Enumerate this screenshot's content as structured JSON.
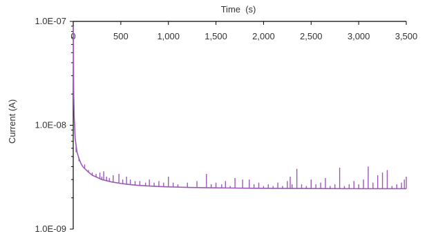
{
  "chart_data": {
    "type": "line",
    "title": "",
    "xlabel": "Time  (s)",
    "ylabel": "Current (A)",
    "x_axis_position": "top",
    "xlim": [
      0,
      3500
    ],
    "ylim": [
      1e-09,
      1e-07
    ],
    "y_scale": "log",
    "grid": false,
    "legend": "none",
    "x_tick_values": [
      0,
      500,
      1000,
      1500,
      2000,
      2500,
      3000,
      3500
    ],
    "x_tick_labels": [
      "0",
      "500",
      "1,000",
      "1,500",
      "2,000",
      "2,500",
      "3,000",
      "3,500"
    ],
    "y_tick_values": [
      1e-09,
      1e-08,
      1e-07
    ],
    "y_tick_labels": [
      "1.0E-09",
      "1.0E-08",
      "1.0E-07"
    ],
    "colors": {
      "series": "#9b59b6",
      "axis": "#000000"
    },
    "series": [
      {
        "baseline": {
          "x": [
            0,
            5,
            10,
            20,
            40,
            60,
            80,
            100,
            150,
            200,
            250,
            300,
            400,
            500,
            600,
            700,
            800,
            900,
            1000,
            1200,
            1400,
            1600,
            1800,
            2000,
            2500,
            3000,
            3500
          ],
          "y": [
            9e-08,
            2e-08,
            1.2e-08,
            7.5e-09,
            5.5e-09,
            4.8e-09,
            4.3e-09,
            4e-09,
            3.6e-09,
            3.3e-09,
            3.15e-09,
            3e-09,
            2.85e-09,
            2.75e-09,
            2.68e-09,
            2.63e-09,
            2.6e-09,
            2.57e-09,
            2.55e-09,
            2.52e-09,
            2.5e-09,
            2.49e-09,
            2.48e-09,
            2.47e-09,
            2.46e-09,
            2.45e-09,
            2.45e-09
          ]
        },
        "spikes": {
          "x": [
            30,
            60,
            120,
            160,
            200,
            240,
            280,
            300,
            320,
            350,
            380,
            420,
            480,
            520,
            560,
            600,
            650,
            700,
            760,
            800,
            850,
            900,
            950,
            1000,
            1050,
            1100,
            1200,
            1300,
            1400,
            1450,
            1500,
            1560,
            1600,
            1650,
            1700,
            1780,
            1850,
            1900,
            1950,
            2000,
            2050,
            2100,
            2150,
            2200,
            2250,
            2280,
            2300,
            2350,
            2400,
            2450,
            2500,
            2550,
            2600,
            2650,
            2700,
            2750,
            2800,
            2850,
            2900,
            2950,
            3000,
            3050,
            3100,
            3150,
            3200,
            3250,
            3300,
            3350,
            3400,
            3450,
            3480,
            3500
          ],
          "y": [
            5.5e-09,
            4.5e-09,
            4.2e-09,
            3.7e-09,
            3.5e-09,
            3.4e-09,
            3.5e-09,
            3.2e-09,
            3.6e-09,
            3.2e-09,
            3.1e-09,
            3.3e-09,
            3.4e-09,
            3e-09,
            3.2e-09,
            3e-09,
            2.9e-09,
            2.9e-09,
            2.8e-09,
            3e-09,
            2.8e-09,
            2.9e-09,
            2.8e-09,
            3.2e-09,
            2.8e-09,
            2.7e-09,
            2.8e-09,
            2.9e-09,
            3.4e-09,
            2.7e-09,
            2.8e-09,
            2.7e-09,
            2.9e-09,
            2.6e-09,
            3.1e-09,
            3e-09,
            3e-09,
            2.7e-09,
            2.8e-09,
            2.6e-09,
            2.7e-09,
            2.6e-09,
            2.8e-09,
            2.6e-09,
            2.9e-09,
            3.2e-09,
            2.7e-09,
            3.8e-09,
            2.7e-09,
            2.6e-09,
            3e-09,
            2.7e-09,
            2.8e-09,
            3.1e-09,
            2.6e-09,
            2.7e-09,
            3.9e-09,
            2.6e-09,
            2.7e-09,
            2.9e-09,
            2.7e-09,
            3e-09,
            4e-09,
            2.8e-09,
            3.3e-09,
            3.5e-09,
            3.7e-09,
            2.6e-09,
            2.7e-09,
            2.8e-09,
            3e-09,
            3.2e-09
          ]
        }
      }
    ]
  }
}
